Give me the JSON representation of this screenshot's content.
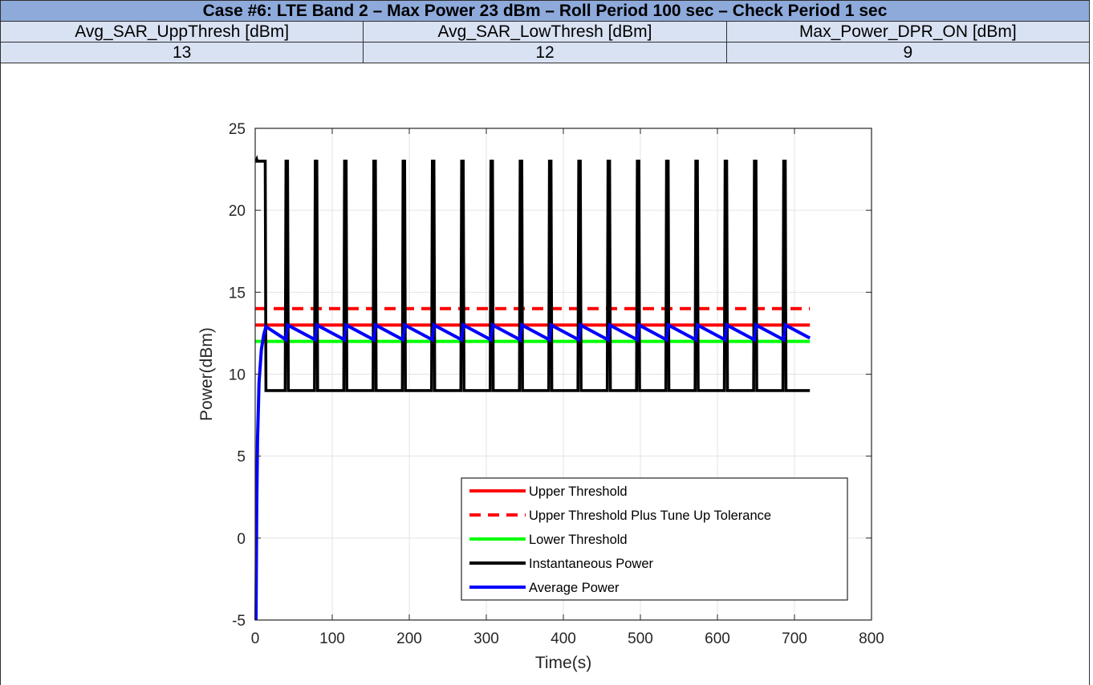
{
  "table": {
    "title": "Case #6: LTE Band 2 – Max Power 23 dBm – Roll Period 100 sec – Check Period 1 sec",
    "headers": [
      "Avg_SAR_UppThresh [dBm]",
      "Avg_SAR_LowThresh [dBm]",
      "Max_Power_DPR_ON [dBm]"
    ],
    "values": [
      "13",
      "12",
      "9"
    ],
    "title_color": "#8eaadb",
    "cell_color": "#d9e2f3"
  },
  "chart_data": {
    "type": "line",
    "xlabel": "Time(s)",
    "ylabel": "Power(dBm)",
    "xlim": [
      0,
      800
    ],
    "ylim": [
      -5,
      25
    ],
    "xticks": [
      "0",
      "100",
      "200",
      "300",
      "400",
      "500",
      "600",
      "700",
      "800"
    ],
    "yticks": [
      "-5",
      "0",
      "5",
      "10",
      "15",
      "20",
      "25"
    ],
    "grid": true,
    "legend_position": "bottom-right",
    "series": [
      {
        "name": "Upper Threshold",
        "color": "#ff0000",
        "style": "solid",
        "x": [
          0,
          720
        ],
        "y": [
          13,
          13
        ]
      },
      {
        "name": "Upper Threshold Plus Tune Up Tolerance",
        "color": "#ff0000",
        "style": "dashed",
        "x": [
          0,
          720
        ],
        "y": [
          14,
          14
        ]
      },
      {
        "name": "Lower Threshold",
        "color": "#00ff00",
        "style": "solid",
        "x": [
          0,
          720
        ],
        "y": [
          12,
          12
        ]
      },
      {
        "name": "Instantaneous Power",
        "color": "#000000",
        "style": "solid",
        "x": [
          0,
          1,
          2,
          2.5,
          13,
          14,
          15,
          39,
          40,
          42,
          43,
          77,
          78,
          80,
          81,
          115,
          116,
          118,
          119,
          153,
          154,
          156,
          157,
          191,
          192,
          194,
          195,
          229,
          230,
          232,
          233,
          267,
          268,
          270,
          271,
          305,
          306,
          308,
          309,
          343,
          344,
          346,
          347,
          381,
          382,
          384,
          385,
          419,
          420,
          422,
          423,
          457,
          458,
          460,
          461,
          495,
          496,
          498,
          499,
          533,
          534,
          536,
          537,
          571,
          572,
          574,
          575,
          609,
          610,
          612,
          613,
          647,
          648,
          650,
          651,
          685,
          686,
          688,
          689,
          720
        ],
        "y": [
          23,
          23,
          23.1,
          23,
          23,
          9,
          9,
          9,
          23,
          23,
          9,
          9,
          23,
          23,
          9,
          9,
          23,
          23,
          9,
          9,
          23,
          23,
          9,
          9,
          23,
          23,
          9,
          9,
          23,
          23,
          9,
          9,
          23,
          23,
          9,
          9,
          23,
          23,
          9,
          9,
          23,
          23,
          9,
          9,
          23,
          23,
          9,
          9,
          23,
          23,
          9,
          9,
          23,
          23,
          9,
          9,
          23,
          23,
          9,
          9,
          23,
          23,
          9,
          9,
          23,
          23,
          9,
          9,
          23,
          23,
          9,
          9,
          23,
          23,
          9,
          9,
          23,
          23,
          9,
          9
        ]
      },
      {
        "name": "Average Power",
        "color": "#0000ff",
        "style": "solid",
        "x": [
          1,
          2,
          3,
          5,
          8,
          11,
          14,
          40,
          42,
          78,
          80,
          116,
          118,
          154,
          156,
          192,
          194,
          230,
          232,
          268,
          270,
          306,
          308,
          344,
          346,
          382,
          384,
          420,
          422,
          458,
          460,
          496,
          498,
          534,
          536,
          572,
          574,
          610,
          612,
          648,
          650,
          686,
          688,
          720
        ],
        "y": [
          -5,
          2,
          6,
          9.5,
          11.5,
          12.4,
          12.9,
          12.1,
          13,
          12.1,
          13,
          12.1,
          13,
          12.1,
          13,
          12.1,
          13,
          12.1,
          13,
          12.1,
          13,
          12.1,
          13,
          12.1,
          13,
          12.1,
          13,
          12.1,
          13,
          12.1,
          13,
          12.1,
          13,
          12.1,
          13,
          12.1,
          13,
          12.1,
          13,
          12.1,
          13,
          12.1,
          13,
          12.2
        ]
      }
    ]
  }
}
